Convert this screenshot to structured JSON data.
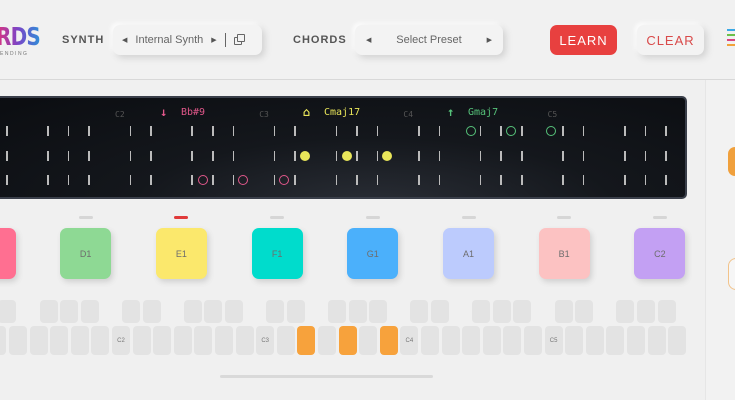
{
  "header": {
    "logo_text": "RDS",
    "logo_subtext": "ENDING",
    "synth_label": "SYNTH",
    "synth_value": "Internal Synth",
    "chords_label": "CHORDS",
    "preset_value": "Select Preset",
    "learn_label": "LEARN",
    "clear_label": "CLEAR",
    "menu_icon_colors": [
      "#3aa9e6",
      "#6cc04a",
      "#d9457f",
      "#f2a23a"
    ]
  },
  "display": {
    "octave_labels": [
      "C2",
      "C3",
      "C4",
      "C5"
    ],
    "chords": [
      {
        "label": "Bb#9",
        "icon": "arrow-down-icon",
        "color": "#e0578a"
      },
      {
        "label": "Cmaj17",
        "icon": "home-icon",
        "color": "#e9e65a"
      },
      {
        "label": "Gmaj7",
        "icon": "arrow-up-icon",
        "color": "#56c27a"
      }
    ]
  },
  "pads": [
    {
      "label": "",
      "color": "#ff6f91"
    },
    {
      "label": "D1",
      "color": "#8ed994"
    },
    {
      "label": "E1",
      "color": "#fbe86c",
      "active": true
    },
    {
      "label": "F1",
      "color": "#00dccc"
    },
    {
      "label": "G1",
      "color": "#4bb0fb"
    },
    {
      "label": "A1",
      "color": "#bccbfd"
    },
    {
      "label": "B1",
      "color": "#fcc2c2"
    },
    {
      "label": "C2",
      "color": "#c3a0f3"
    }
  ],
  "keyboard": {
    "labels": [
      "C2",
      "C3",
      "C4",
      "C5"
    ],
    "active_keys": [
      "E3",
      "G3",
      "B3"
    ],
    "accent_color": "#f7a23c"
  },
  "colors": {
    "learn": "#e8403f",
    "clear_text": "#d94a4a",
    "display_bg": "#0e1116"
  }
}
